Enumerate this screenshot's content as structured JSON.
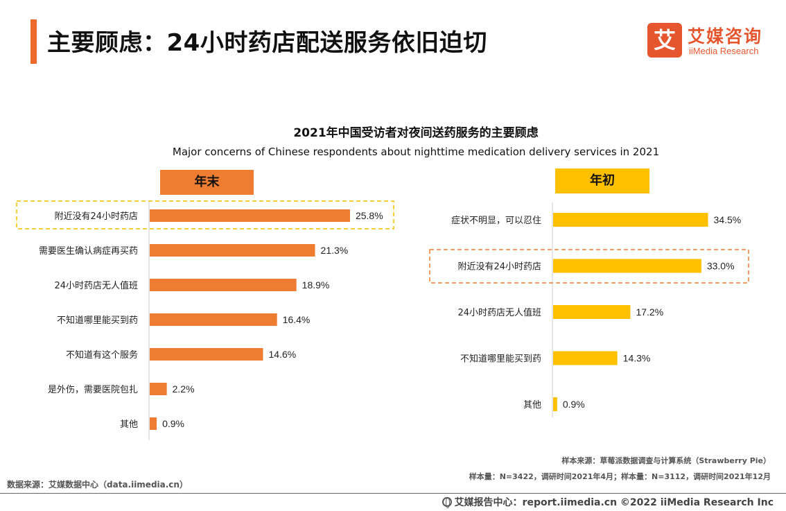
{
  "page": {
    "title": "主要顾虑：24小时药店配送服务依旧迫切",
    "logo_mark": "艾",
    "logo_cn": "艾媒咨询",
    "logo_en": "iiMedia Research",
    "source_right_1": "样本来源：草莓派数据调查与计算系统（Strawberry Pie）",
    "source_right_2": "样本量：N=3422，调研时间2021年4月；样本量：N=3112，调研时间2021年12月",
    "source_left": "数据来源：艾媒数据中心（data.iimedia.cn）",
    "bottom": "艾媒报告中心：report.iimedia.cn   ©2022  iiMedia Research Inc"
  },
  "colors": {
    "accent": "#ee6a2c",
    "year_end": "#ee7d31",
    "year_start": "#ffc000",
    "highlight_border": "#ee7d31"
  },
  "chart_data": [
    {
      "type": "bar",
      "orientation": "horizontal",
      "title": "2021年中国受访者对夜间送药服务的主要顾虑",
      "subtitle": "Major concerns of Chinese respondents about nighttime medication delivery services in 2021",
      "panel": "年末",
      "unit": "%",
      "categories": [
        "附近没有24小时药店",
        "需要医生确认病症再买药",
        "24小时药店无人值班",
        "不知道哪里能买到药",
        "不知道有这个服务",
        "是外伤，需要医院包扎",
        "其他"
      ],
      "values": [
        25.8,
        21.3,
        18.9,
        16.4,
        14.6,
        2.2,
        0.9
      ],
      "labels": [
        "25.8%",
        "21.3%",
        "18.9%",
        "16.4%",
        "14.6%",
        "2.2%",
        "0.9%"
      ],
      "highlighted": [
        0
      ],
      "color": "#ee7d31"
    },
    {
      "type": "bar",
      "orientation": "horizontal",
      "panel": "年初",
      "unit": "%",
      "categories": [
        "症状不明显，可以忍住",
        "附近没有24小时药店",
        "24小时药店无人值班",
        "不知道哪里能买到药",
        "其他"
      ],
      "values": [
        34.5,
        33.0,
        17.2,
        14.3,
        0.9
      ],
      "labels": [
        "34.5%",
        "33.0%",
        "17.2%",
        "14.3%",
        "0.9%"
      ],
      "highlighted": [
        1
      ],
      "color": "#ffc000"
    }
  ]
}
